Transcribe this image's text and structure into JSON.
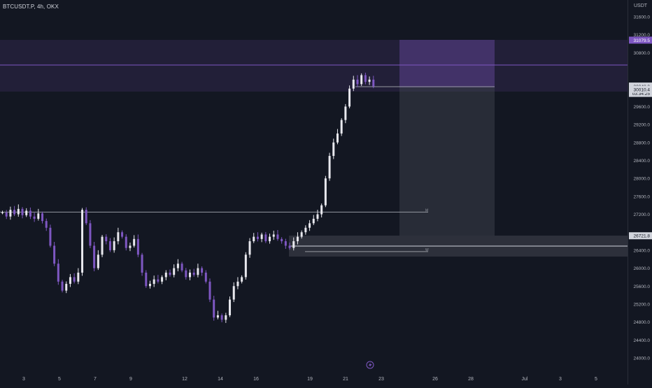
{
  "header": {
    "symbol_line": "BTCUSDT.P, 4h, OKX",
    "currency": "USDT"
  },
  "price_axis": {
    "ticks": [
      "31600.0",
      "31200.0",
      "30800.0",
      "29600.0",
      "29200.0",
      "28800.0",
      "28400.0",
      "28000.0",
      "27600.0",
      "27200.0",
      "26400.0",
      "26000.0",
      "25600.0",
      "25200.0",
      "24800.0",
      "24400.0",
      "24000.0"
    ],
    "tick_values": [
      31600,
      31200,
      30800,
      29600,
      29200,
      28800,
      28400,
      28000,
      27600,
      27200,
      26400,
      26000,
      25600,
      25200,
      24800,
      24400,
      24000
    ],
    "tags": [
      {
        "text": "31079.5",
        "value": 31079.5,
        "bg": "#7e57c2",
        "color": "#ffffff"
      },
      {
        "text": "30058.5",
        "value": 30058.5,
        "bg": "#b2b5be",
        "color": "#131722"
      },
      {
        "text": "30048.0",
        "value": 30048.0,
        "bg": "#d1d4dc",
        "color": "#131722"
      },
      {
        "text": "03:34:25",
        "value": 29893,
        "bg": "#d1d4dc",
        "color": "#131722"
      },
      {
        "text": "30010.4",
        "value": 29984.0,
        "bg": "#d1d4dc",
        "color": "#131722"
      },
      {
        "text": "26721.8",
        "value": 26721.8,
        "bg": "#d1d4dc",
        "color": "#131722"
      }
    ]
  },
  "time_axis": {
    "labels": [
      "3",
      "5",
      "7",
      "9",
      "12",
      "14",
      "16",
      "19",
      "21",
      "23",
      "26",
      "28",
      "Jul",
      "3",
      "5"
    ],
    "label_x": [
      34,
      85,
      136,
      187,
      264,
      315,
      366,
      443,
      494,
      545,
      622,
      673,
      750,
      801,
      852
    ]
  },
  "levels": [
    {
      "label": "M",
      "value": 27250
    },
    {
      "label": "W",
      "value": 26370
    }
  ],
  "markers": {
    "lightning_icon": "lightning-icon"
  },
  "colors": {
    "background": "#131722",
    "bull": "#e8e8ee",
    "bear": "#7e57c2",
    "zone_purple": "#7e57c2",
    "zone_gray": "#434651"
  }
}
